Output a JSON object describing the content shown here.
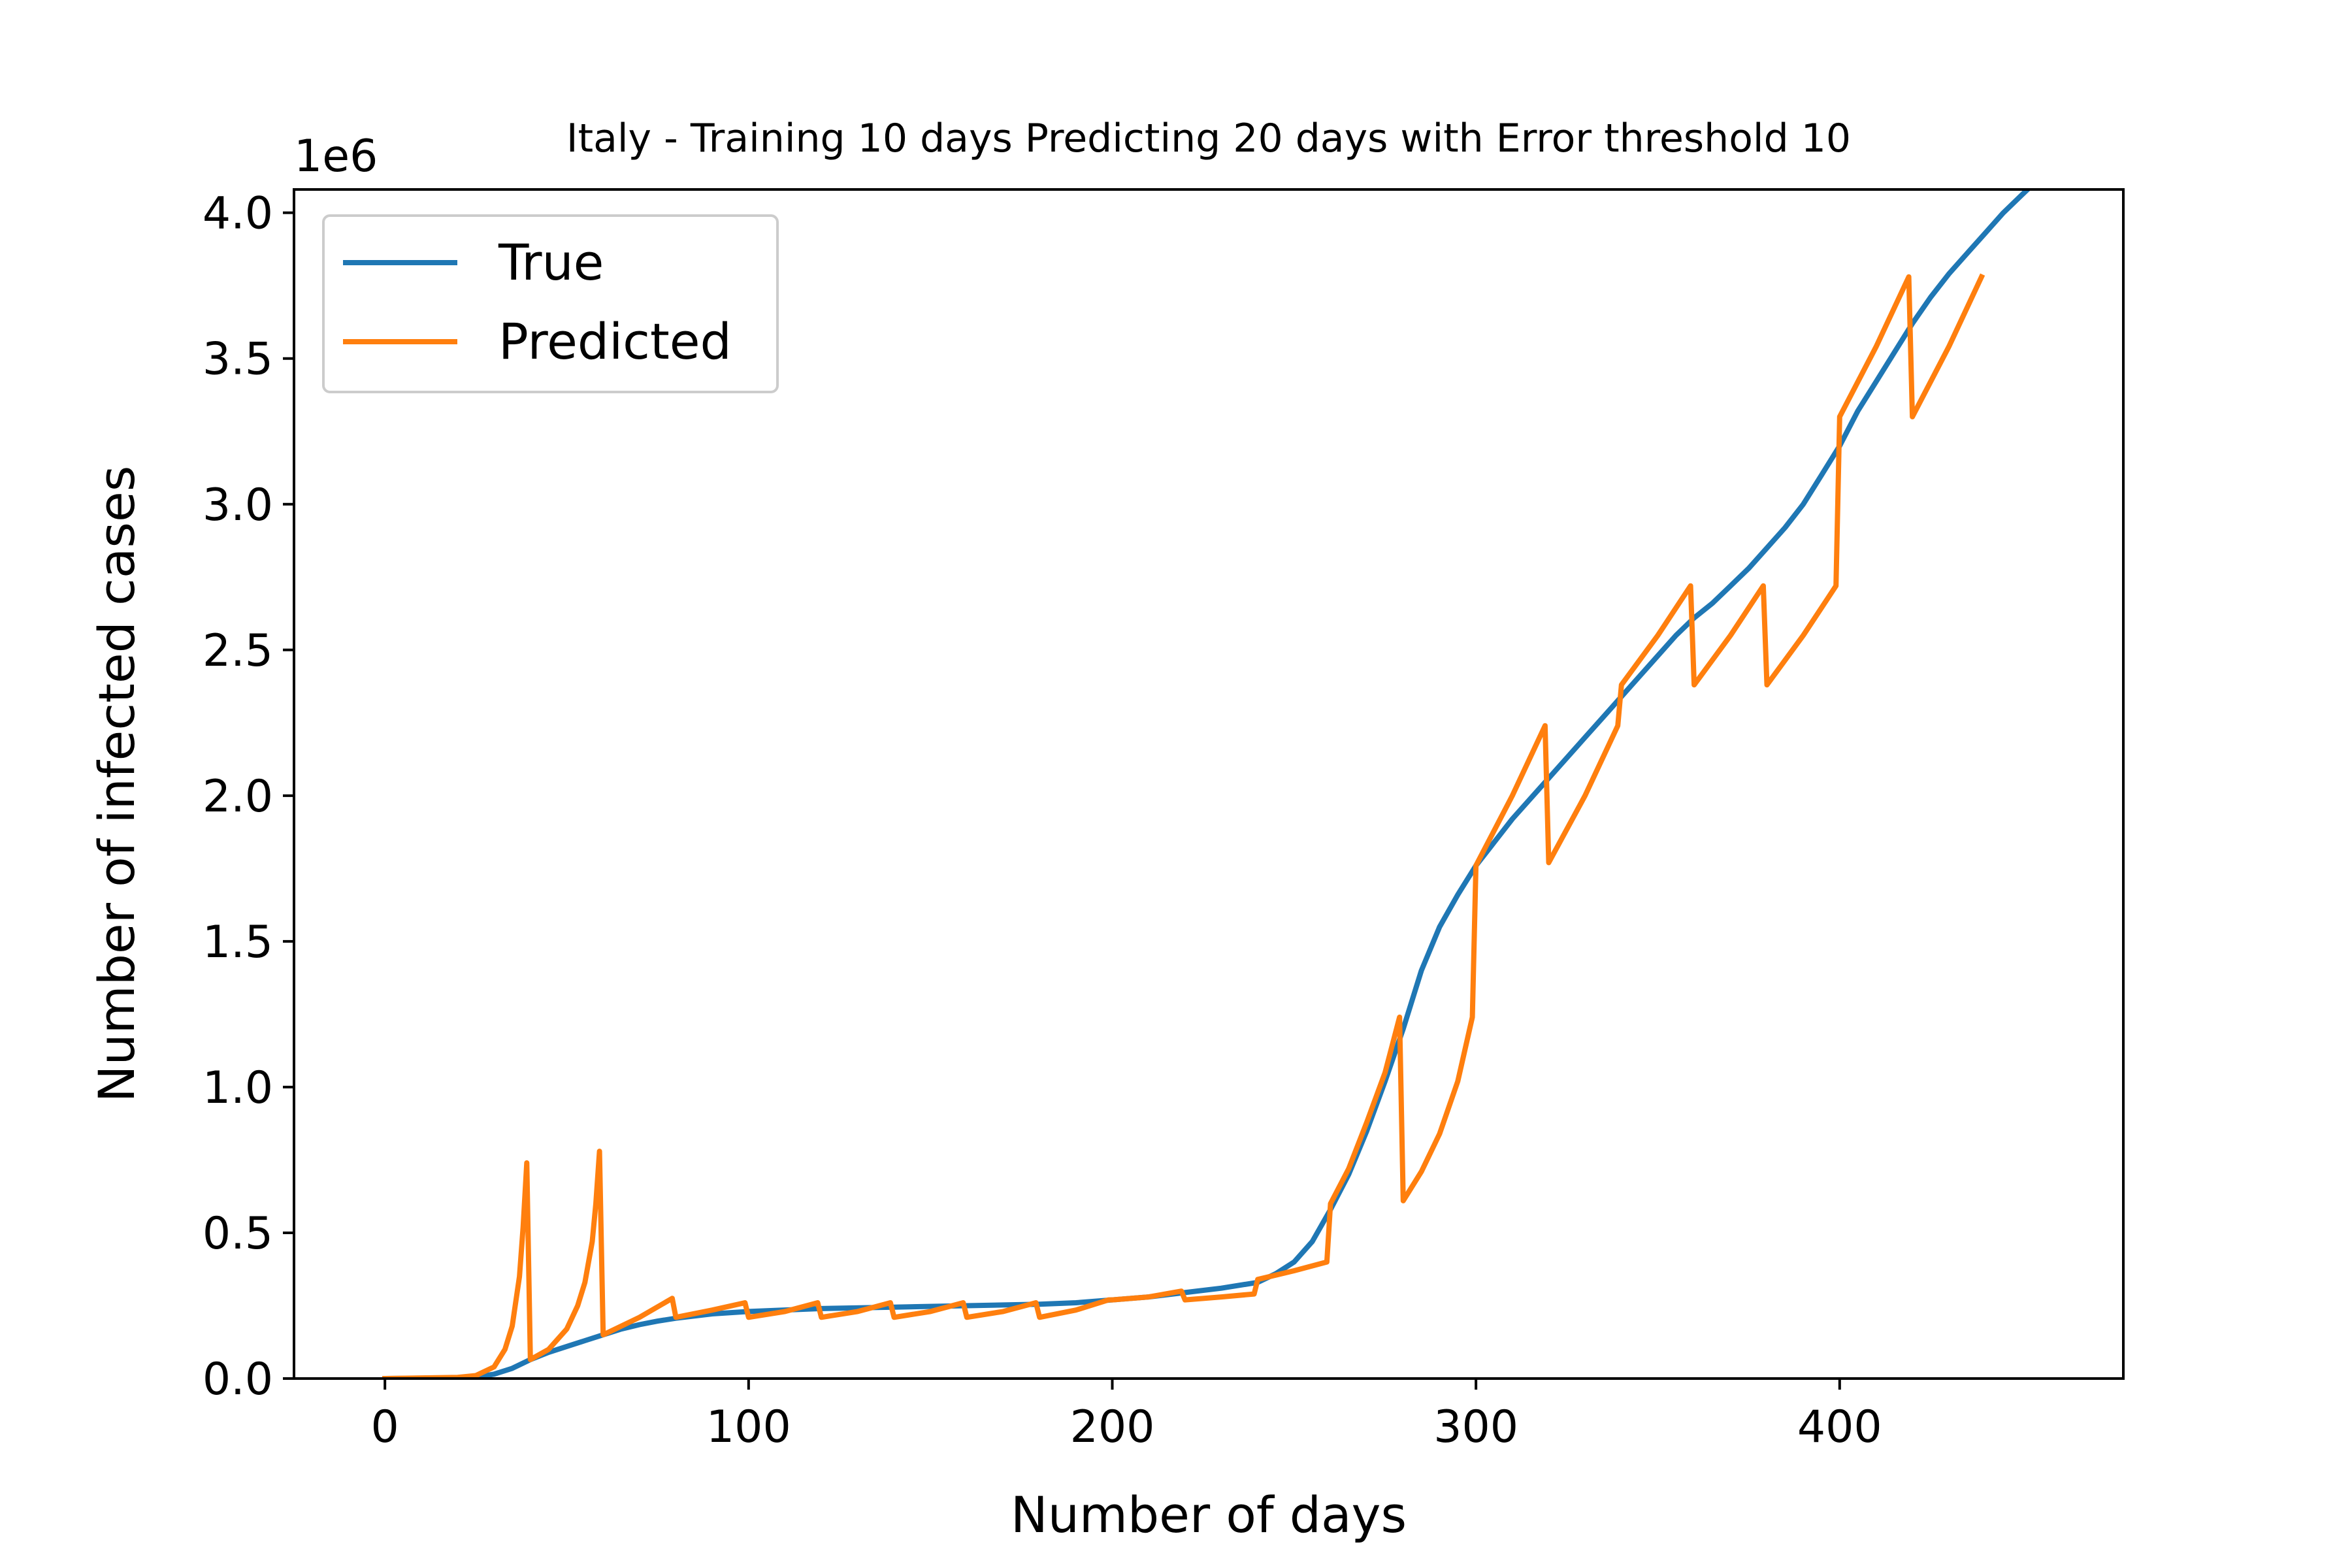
{
  "chart_data": {
    "type": "line",
    "title": "Italy - Training 10 days Predicting 20 days with Error threshold 10",
    "xlabel": "Number of days",
    "ylabel": "Number of infected cases",
    "y_offset_label": "1e6",
    "xlim": [
      -25,
      478
    ],
    "ylim": [
      0,
      4.08
    ],
    "x_ticks": [
      0,
      100,
      200,
      300,
      400
    ],
    "x_tick_labels": [
      "0",
      "100",
      "200",
      "300",
      "400"
    ],
    "y_ticks": [
      0.0,
      0.5,
      1.0,
      1.5,
      2.0,
      2.5,
      3.0,
      3.5,
      4.0
    ],
    "y_tick_labels": [
      "0.0",
      "0.5",
      "1.0",
      "1.5",
      "2.0",
      "2.5",
      "3.0",
      "3.5",
      "4.0"
    ],
    "grid": false,
    "legend_position": "top-left",
    "legend_entries": [
      "True",
      "Predicted"
    ],
    "series": [
      {
        "name": "True",
        "color": "#1f77b4",
        "points": [
          [
            0,
            0
          ],
          [
            20,
            0.002
          ],
          [
            25,
            0.005
          ],
          [
            30,
            0.015
          ],
          [
            35,
            0.035
          ],
          [
            40,
            0.065
          ],
          [
            45,
            0.09
          ],
          [
            50,
            0.11
          ],
          [
            55,
            0.13
          ],
          [
            60,
            0.15
          ],
          [
            65,
            0.17
          ],
          [
            70,
            0.185
          ],
          [
            75,
            0.197
          ],
          [
            80,
            0.207
          ],
          [
            90,
            0.222
          ],
          [
            100,
            0.23
          ],
          [
            120,
            0.24
          ],
          [
            140,
            0.245
          ],
          [
            160,
            0.25
          ],
          [
            180,
            0.255
          ],
          [
            190,
            0.26
          ],
          [
            200,
            0.27
          ],
          [
            210,
            0.28
          ],
          [
            220,
            0.295
          ],
          [
            230,
            0.31
          ],
          [
            240,
            0.33
          ],
          [
            245,
            0.36
          ],
          [
            250,
            0.4
          ],
          [
            255,
            0.47
          ],
          [
            260,
            0.58
          ],
          [
            265,
            0.7
          ],
          [
            270,
            0.85
          ],
          [
            275,
            1.02
          ],
          [
            280,
            1.2
          ],
          [
            285,
            1.4
          ],
          [
            290,
            1.55
          ],
          [
            295,
            1.66
          ],
          [
            300,
            1.76
          ],
          [
            305,
            1.84
          ],
          [
            310,
            1.92
          ],
          [
            315,
            1.99
          ],
          [
            320,
            2.06
          ],
          [
            325,
            2.13
          ],
          [
            330,
            2.2
          ],
          [
            335,
            2.27
          ],
          [
            340,
            2.34
          ],
          [
            345,
            2.41
          ],
          [
            350,
            2.48
          ],
          [
            355,
            2.55
          ],
          [
            360,
            2.61
          ],
          [
            365,
            2.66
          ],
          [
            370,
            2.72
          ],
          [
            375,
            2.78
          ],
          [
            380,
            2.85
          ],
          [
            385,
            2.92
          ],
          [
            390,
            3.0
          ],
          [
            395,
            3.1
          ],
          [
            400,
            3.2
          ],
          [
            405,
            3.32
          ],
          [
            410,
            3.42
          ],
          [
            415,
            3.52
          ],
          [
            420,
            3.62
          ],
          [
            425,
            3.71
          ],
          [
            430,
            3.79
          ],
          [
            435,
            3.86
          ],
          [
            440,
            3.93
          ],
          [
            445,
            4.0
          ],
          [
            450,
            4.06
          ],
          [
            455,
            4.12
          ]
        ]
      },
      {
        "name": "Predicted",
        "color": "#ff7f0e",
        "points": [
          [
            0,
            0
          ],
          [
            20,
            0.004
          ],
          [
            25,
            0.01
          ],
          [
            30,
            0.04
          ],
          [
            33,
            0.1
          ],
          [
            35,
            0.18
          ],
          [
            37,
            0.35
          ],
          [
            38,
            0.52
          ],
          [
            39,
            0.74
          ],
          [
            40,
            0.065
          ],
          [
            45,
            0.1
          ],
          [
            50,
            0.17
          ],
          [
            53,
            0.25
          ],
          [
            55,
            0.33
          ],
          [
            57,
            0.47
          ],
          [
            58,
            0.6
          ],
          [
            59,
            0.78
          ],
          [
            60,
            0.15
          ],
          [
            70,
            0.21
          ],
          [
            79,
            0.275
          ],
          [
            80,
            0.21
          ],
          [
            90,
            0.235
          ],
          [
            99,
            0.26
          ],
          [
            100,
            0.21
          ],
          [
            110,
            0.23
          ],
          [
            119,
            0.26
          ],
          [
            120,
            0.21
          ],
          [
            130,
            0.23
          ],
          [
            139,
            0.26
          ],
          [
            140,
            0.21
          ],
          [
            150,
            0.23
          ],
          [
            159,
            0.26
          ],
          [
            160,
            0.21
          ],
          [
            170,
            0.23
          ],
          [
            179,
            0.26
          ],
          [
            180,
            0.21
          ],
          [
            190,
            0.235
          ],
          [
            199,
            0.27
          ],
          [
            200,
            0.27
          ],
          [
            210,
            0.28
          ],
          [
            219,
            0.3
          ],
          [
            220,
            0.27
          ],
          [
            230,
            0.28
          ],
          [
            239,
            0.29
          ],
          [
            240,
            0.34
          ],
          [
            250,
            0.37
          ],
          [
            259,
            0.4
          ],
          [
            260,
            0.6
          ],
          [
            265,
            0.72
          ],
          [
            270,
            0.88
          ],
          [
            275,
            1.05
          ],
          [
            279,
            1.24
          ],
          [
            280,
            0.61
          ],
          [
            285,
            0.71
          ],
          [
            290,
            0.84
          ],
          [
            295,
            1.02
          ],
          [
            299,
            1.24
          ],
          [
            300,
            1.76
          ],
          [
            310,
            2.0
          ],
          [
            319,
            2.24
          ],
          [
            320,
            1.77
          ],
          [
            330,
            2.0
          ],
          [
            339,
            2.24
          ],
          [
            340,
            2.38
          ],
          [
            350,
            2.55
          ],
          [
            359,
            2.72
          ],
          [
            360,
            2.38
          ],
          [
            370,
            2.55
          ],
          [
            379,
            2.72
          ],
          [
            380,
            2.38
          ],
          [
            390,
            2.55
          ],
          [
            399,
            2.72
          ],
          [
            400,
            3.3
          ],
          [
            410,
            3.54
          ],
          [
            419,
            3.78
          ],
          [
            420,
            3.3
          ],
          [
            430,
            3.54
          ],
          [
            439,
            3.78
          ]
        ]
      }
    ]
  }
}
